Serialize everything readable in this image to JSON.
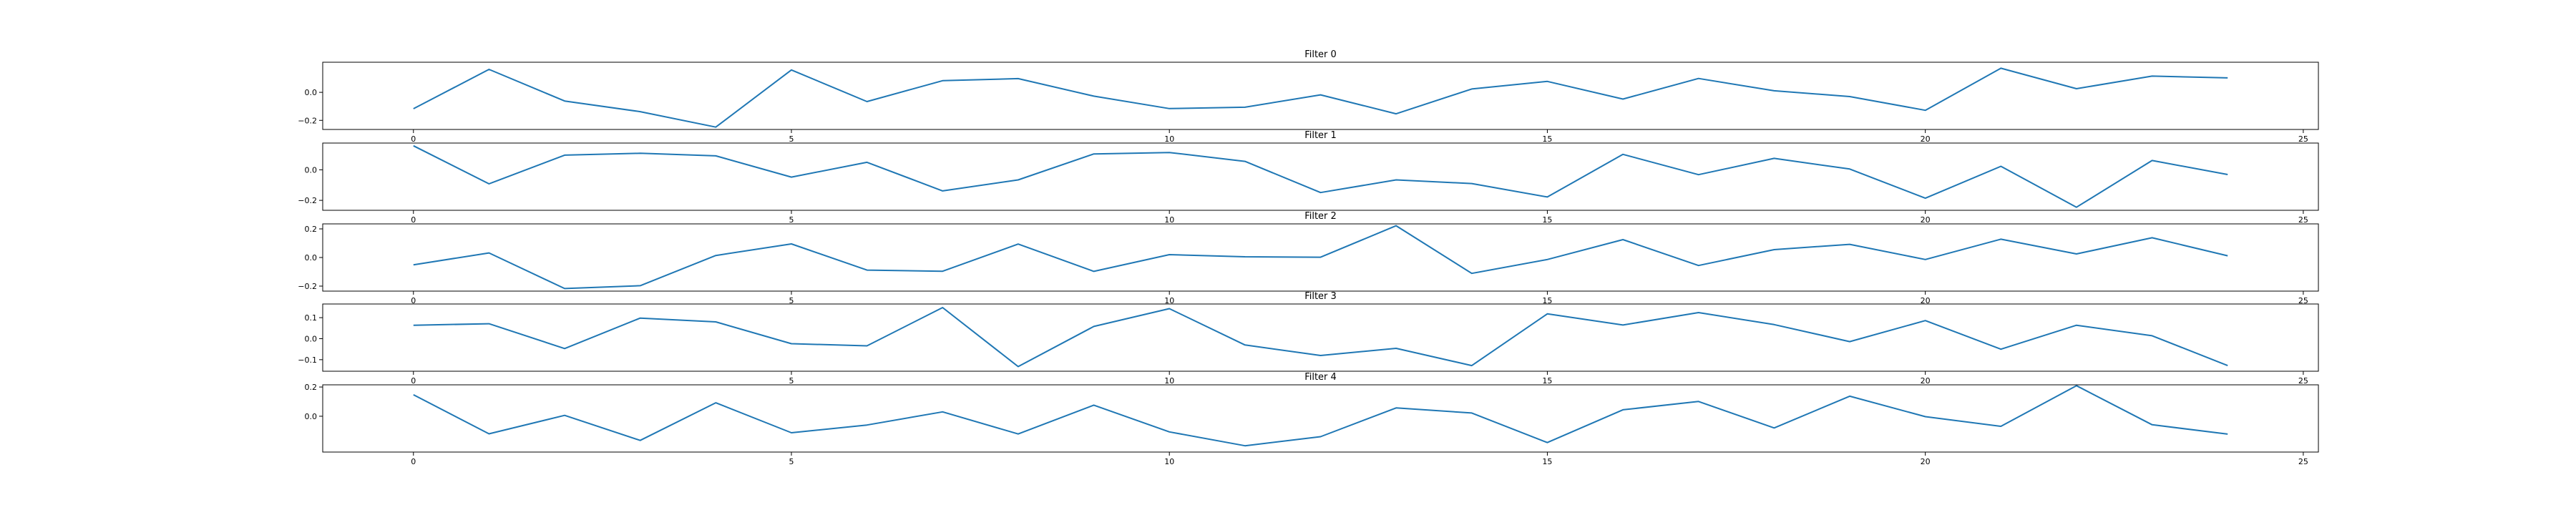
{
  "chart_data": [
    {
      "type": "line",
      "title": "Filter 0",
      "xlabel": "",
      "ylabel": "",
      "xlim": [
        -1.2,
        25.2
      ],
      "ylim": [
        -0.265,
        0.215
      ],
      "xticks": [
        0,
        5,
        10,
        15,
        20,
        25
      ],
      "yticks": [
        0.0,
        -0.2
      ],
      "ytick_labels": [
        "0.0",
        "−0.2"
      ],
      "grid": false,
      "color": "#1f77b4",
      "x": [
        0,
        1,
        2,
        3,
        4,
        5,
        6,
        7,
        8,
        9,
        10,
        11,
        12,
        13,
        14,
        15,
        16,
        17,
        18,
        19,
        20,
        21,
        22,
        23,
        24
      ],
      "values": [
        -0.117,
        0.164,
        -0.062,
        -0.138,
        -0.248,
        0.16,
        -0.066,
        0.083,
        0.098,
        -0.027,
        -0.116,
        -0.106,
        -0.018,
        -0.153,
        0.024,
        0.078,
        -0.048,
        0.099,
        0.011,
        -0.03,
        -0.128,
        0.172,
        0.026,
        0.116,
        0.103
      ]
    },
    {
      "type": "line",
      "title": "Filter 1",
      "xlabel": "",
      "ylabel": "",
      "xlim": [
        -1.2,
        25.2
      ],
      "ylim": [
        -0.265,
        0.175
      ],
      "xticks": [
        0,
        5,
        10,
        15,
        20,
        25
      ],
      "yticks": [
        0.0,
        -0.2
      ],
      "ytick_labels": [
        "0.0",
        "−0.2"
      ],
      "grid": false,
      "color": "#1f77b4",
      "x": [
        0,
        1,
        2,
        3,
        4,
        5,
        6,
        7,
        8,
        9,
        10,
        11,
        12,
        13,
        14,
        15,
        16,
        17,
        18,
        19,
        20,
        21,
        22,
        23,
        24
      ],
      "values": [
        0.157,
        -0.092,
        0.096,
        0.108,
        0.091,
        -0.048,
        0.049,
        -0.138,
        -0.066,
        0.104,
        0.113,
        0.055,
        -0.149,
        -0.066,
        -0.09,
        -0.178,
        0.101,
        -0.032,
        0.075,
        0.005,
        -0.186,
        0.023,
        -0.245,
        0.061,
        -0.031
      ]
    },
    {
      "type": "line",
      "title": "Filter 2",
      "xlabel": "",
      "ylabel": "",
      "xlim": [
        -1.2,
        25.2
      ],
      "ylim": [
        -0.235,
        0.235
      ],
      "xticks": [
        0,
        5,
        10,
        15,
        20,
        25
      ],
      "yticks": [
        0.2,
        0.0,
        -0.2
      ],
      "ytick_labels": [
        "0.2",
        "0.0",
        "−0.2"
      ],
      "grid": false,
      "color": "#1f77b4",
      "x": [
        0,
        1,
        2,
        3,
        4,
        5,
        6,
        7,
        8,
        9,
        10,
        11,
        12,
        13,
        14,
        15,
        16,
        17,
        18,
        19,
        20,
        21,
        22,
        23,
        24
      ],
      "values": [
        -0.051,
        0.032,
        -0.217,
        -0.197,
        0.014,
        0.095,
        -0.088,
        -0.096,
        0.094,
        -0.097,
        0.02,
        0.005,
        0.002,
        0.222,
        -0.111,
        -0.014,
        0.125,
        -0.056,
        0.055,
        0.092,
        -0.014,
        0.128,
        0.025,
        0.138,
        0.012
      ]
    },
    {
      "type": "line",
      "title": "Filter 3",
      "xlabel": "",
      "ylabel": "",
      "xlim": [
        -1.2,
        25.2
      ],
      "ylim": [
        -0.155,
        0.165
      ],
      "xticks": [
        0,
        5,
        10,
        15,
        20,
        25
      ],
      "yticks": [
        0.1,
        0.0,
        -0.1
      ],
      "ytick_labels": [
        "0.1",
        "0.0",
        "−0.1"
      ],
      "grid": false,
      "color": "#1f77b4",
      "x": [
        0,
        1,
        2,
        3,
        4,
        5,
        6,
        7,
        8,
        9,
        10,
        11,
        12,
        13,
        14,
        15,
        16,
        17,
        18,
        19,
        20,
        21,
        22,
        23,
        24
      ],
      "values": [
        0.064,
        0.071,
        -0.047,
        0.098,
        0.08,
        -0.024,
        -0.034,
        0.148,
        -0.133,
        0.058,
        0.143,
        -0.03,
        -0.08,
        -0.046,
        -0.128,
        0.118,
        0.065,
        0.124,
        0.067,
        -0.014,
        0.086,
        -0.05,
        0.064,
        0.014,
        -0.128
      ]
    },
    {
      "type": "line",
      "title": "Filter 4",
      "xlabel": "",
      "ylabel": "",
      "xlim": [
        -1.2,
        25.2
      ],
      "ylim": [
        -0.245,
        0.215
      ],
      "xticks": [
        0,
        5,
        10,
        15,
        20,
        25
      ],
      "yticks": [
        0.2,
        0.0
      ],
      "ytick_labels": [
        "0.2",
        "0.0"
      ],
      "grid": false,
      "color": "#1f77b4",
      "x": [
        0,
        1,
        2,
        3,
        4,
        5,
        6,
        7,
        8,
        9,
        10,
        11,
        12,
        13,
        14,
        15,
        16,
        17,
        18,
        19,
        20,
        21,
        22,
        23,
        24
      ],
      "values": [
        0.147,
        -0.12,
        0.006,
        -0.165,
        0.092,
        -0.113,
        -0.06,
        0.03,
        -0.121,
        0.076,
        -0.107,
        -0.202,
        -0.14,
        0.057,
        0.022,
        -0.18,
        0.044,
        0.101,
        -0.08,
        0.137,
        -0.003,
        -0.069,
        0.209,
        -0.058,
        -0.122
      ]
    }
  ]
}
